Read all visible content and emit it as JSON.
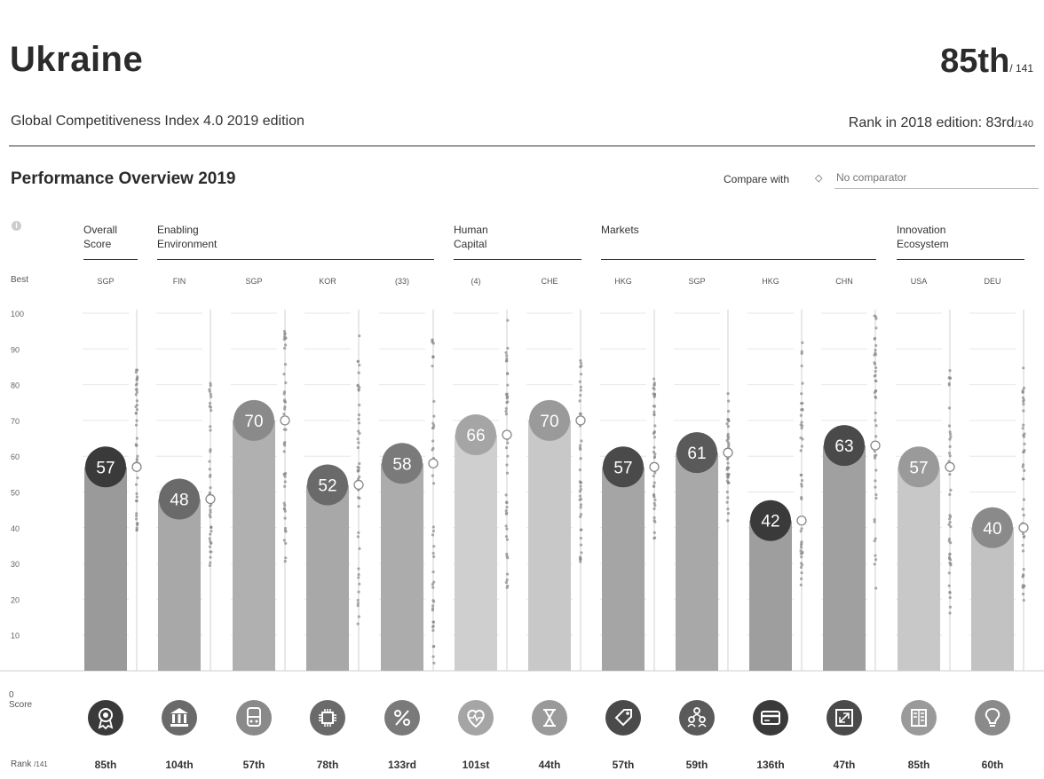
{
  "header": {
    "country": "Ukraine",
    "rank": "85th",
    "rank_total": "/ 141",
    "index_title": "Global Competitiveness Index 4.0 2019 edition",
    "prev_rank_prefix": "Rank in 2018 edition: 83rd",
    "prev_rank_total": "/140"
  },
  "overview": {
    "title": "Performance Overview 2019",
    "compare_label": "Compare with",
    "compare_icon": "diamond-icon",
    "compare_placeholder": "No comparator",
    "info_icon": "i"
  },
  "groups": [
    {
      "label": "Overall\nScore",
      "colors": [
        0
      ]
    },
    {
      "label": "Enabling\nEnvironment",
      "colors": [
        1,
        2,
        3,
        4
      ]
    },
    {
      "label": "Human\nCapital",
      "colors": [
        5,
        6
      ]
    },
    {
      "label": "Markets",
      "colors": [
        7,
        8,
        9,
        10
      ]
    },
    {
      "label": "Innovation\nEcosystem",
      "colors": [
        11,
        12
      ]
    }
  ],
  "axis": {
    "best_label": "Best",
    "score_label": "0\nScore",
    "rank_label": "Rank",
    "rank_label_total": "/141"
  },
  "chart_data": {
    "type": "bar",
    "ylim": [
      0,
      100
    ],
    "yticks": [
      "100",
      "90",
      "80",
      "70",
      "60",
      "50",
      "40",
      "30",
      "20",
      "10"
    ],
    "categories": [
      "Overall Score",
      "Institutions",
      "Infrastructure",
      "ICT adoption",
      "Macroeconomic stability",
      "Health",
      "Skills",
      "Product market",
      "Labour market",
      "Financial system",
      "Market size",
      "Business dynamism",
      "Innovation capability"
    ],
    "best": [
      "SGP",
      "FIN",
      "SGP",
      "KOR",
      "(33)",
      "(4)",
      "CHE",
      "HKG",
      "SGP",
      "HKG",
      "CHN",
      "USA",
      "DEU"
    ],
    "values": [
      57,
      48,
      70,
      52,
      58,
      66,
      70,
      57,
      61,
      42,
      63,
      57,
      40
    ],
    "ranks": [
      "85th",
      "104th",
      "57th",
      "78th",
      "133rd",
      "101st",
      "44th",
      "57th",
      "59th",
      "136th",
      "47th",
      "85th",
      "60th"
    ],
    "score_colors": [
      "#3a3a3a",
      "#6a6a6a",
      "#8a8a8a",
      "#6a6a6a",
      "#7a7a7a",
      "#a5a5a5",
      "#9a9a9a",
      "#4a4a4a",
      "#5a5a5a",
      "#3a3a3a",
      "#4a4a4a",
      "#9a9a9a",
      "#8a8a8a"
    ],
    "bar_colors": [
      "#9a9a9a",
      "#a8a8a8",
      "#b0b0b0",
      "#a8a8a8",
      "#acacac",
      "#cfcfcf",
      "#c8c8c8",
      "#a5a5a5",
      "#a8a8a8",
      "#9e9e9e",
      "#a0a0a0",
      "#c8c8c8",
      "#c2c2c2"
    ],
    "icons": [
      "award-icon",
      "institution-building-icon",
      "infrastructure-train-icon",
      "ict-chip-icon",
      "percent-macro-icon",
      "health-heart-icon",
      "skills-icon",
      "product-market-tag-icon",
      "labour-market-people-icon",
      "financial-card-icon",
      "market-size-expand-icon",
      "business-dynamism-icon",
      "innovation-bulb-icon"
    ],
    "distribution_ranges": [
      [
        37,
        86
      ],
      [
        28,
        81
      ],
      [
        30,
        96
      ],
      [
        13,
        94
      ],
      [
        0,
        100
      ],
      [
        22,
        100
      ],
      [
        28,
        88
      ],
      [
        37,
        82
      ],
      [
        42,
        80
      ],
      [
        24,
        92
      ],
      [
        18,
        100
      ],
      [
        15,
        84
      ],
      [
        18,
        86
      ]
    ]
  }
}
